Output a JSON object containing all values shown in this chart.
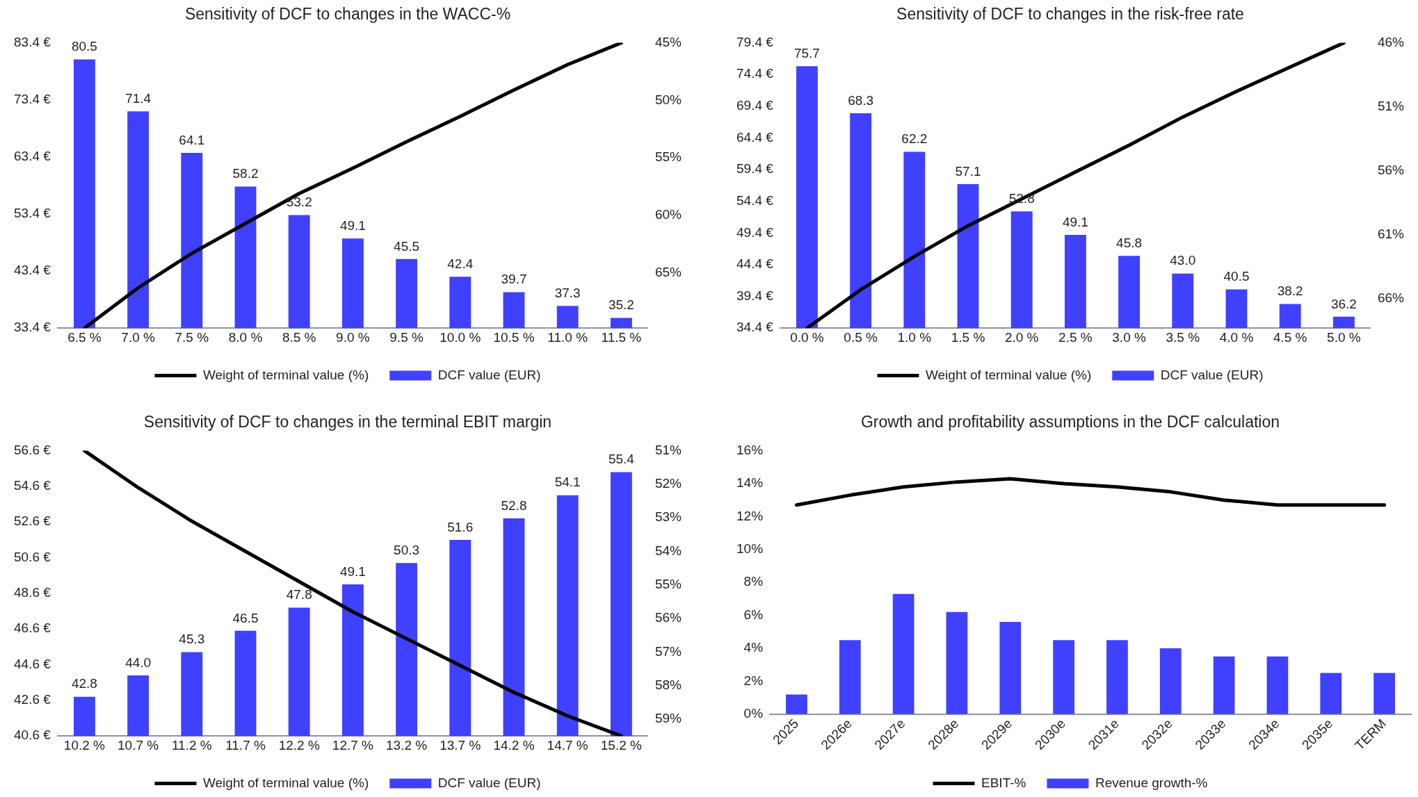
{
  "chart_data": [
    {
      "type": "bar",
      "title": "Sensitivity of DCF to changes in the WACC-%",
      "categories": [
        "6.5 %",
        "7.0 %",
        "7.5 %",
        "8.0 %",
        "8.5 %",
        "9.0 %",
        "9.5 %",
        "10.0 %",
        "10.5 %",
        "11.0 %",
        "11.5 %"
      ],
      "series": [
        {
          "name": "DCF value (EUR)",
          "color": "#4040ff",
          "values": [
            80.5,
            71.4,
            64.1,
            58.2,
            53.2,
            49.1,
            45.5,
            42.4,
            39.7,
            37.3,
            35.2
          ],
          "value_labels": [
            "80.5",
            "71.4",
            "64.1",
            "58.2",
            "53.2",
            "49.1",
            "45.5",
            "42.4",
            "39.7",
            "37.3",
            "35.2"
          ]
        },
        {
          "type": "line",
          "axis": "y2",
          "name": "Weight of terminal value (%)",
          "color": "#000000",
          "values": [
            69.8,
            66.3,
            63.3,
            60.7,
            58.1,
            55.9,
            53.6,
            51.4,
            49.1,
            46.9,
            45.0
          ]
        }
      ],
      "ylim": [
        33.4,
        83.4
      ],
      "yticks": [
        {
          "value": 33.4,
          "label": "33.4 €"
        },
        {
          "value": 43.4,
          "label": "43.4 €"
        },
        {
          "value": 53.4,
          "label": "53.4 €"
        },
        {
          "value": 63.4,
          "label": "63.4 €"
        },
        {
          "value": 73.4,
          "label": "73.4 €"
        },
        {
          "value": 83.4,
          "label": "83.4 €"
        }
      ],
      "y2lim": [
        69.8,
        45
      ],
      "y2ticks": [
        {
          "value": 45,
          "label": "45%"
        },
        {
          "value": 50,
          "label": "50%"
        },
        {
          "value": 55,
          "label": "55%"
        },
        {
          "value": 60,
          "label": "60%"
        },
        {
          "value": 65,
          "label": "65%"
        }
      ],
      "grid": false,
      "legend": "bottom",
      "marker": "none",
      "line_style": "solid"
    },
    {
      "type": "bar",
      "title": "Sensitivity of DCF to changes in the risk-free rate",
      "categories": [
        "0.0 %",
        "0.5 %",
        "1.0 %",
        "1.5 %",
        "2.0 %",
        "2.5 %",
        "3.0 %",
        "3.5 %",
        "4.0 %",
        "4.5 %",
        "5.0 %"
      ],
      "series": [
        {
          "name": "DCF value (EUR)",
          "color": "#4040ff",
          "values": [
            75.7,
            68.3,
            62.2,
            57.1,
            52.8,
            49.1,
            45.8,
            43.0,
            40.5,
            38.2,
            36.2
          ],
          "value_labels": [
            "75.7",
            "68.3",
            "62.2",
            "57.1",
            "52.8",
            "49.1",
            "45.8",
            "43.0",
            "40.5",
            "38.2",
            "36.2"
          ]
        },
        {
          "type": "line",
          "axis": "y2",
          "name": "Weight of terminal value (%)",
          "color": "#000000",
          "values": [
            68.3,
            65.3,
            62.7,
            60.3,
            58.2,
            56.1,
            54.0,
            51.8,
            49.8,
            47.9,
            46.0
          ]
        }
      ],
      "ylim": [
        34.4,
        79.4
      ],
      "yticks": [
        {
          "value": 34.4,
          "label": "34.4 €"
        },
        {
          "value": 39.4,
          "label": "39.4 €"
        },
        {
          "value": 44.4,
          "label": "44.4 €"
        },
        {
          "value": 49.4,
          "label": "49.4 €"
        },
        {
          "value": 54.4,
          "label": "54.4 €"
        },
        {
          "value": 59.4,
          "label": "59.4 €"
        },
        {
          "value": 64.4,
          "label": "64.4 €"
        },
        {
          "value": 69.4,
          "label": "69.4 €"
        },
        {
          "value": 74.4,
          "label": "74.4 €"
        },
        {
          "value": 79.4,
          "label": "79.4 €"
        }
      ],
      "y2lim": [
        68.3,
        46
      ],
      "y2ticks": [
        {
          "value": 46,
          "label": "46%"
        },
        {
          "value": 51,
          "label": "51%"
        },
        {
          "value": 56,
          "label": "56%"
        },
        {
          "value": 61,
          "label": "61%"
        },
        {
          "value": 66,
          "label": "66%"
        }
      ],
      "grid": false,
      "legend": "bottom",
      "marker": "none",
      "line_style": "solid"
    },
    {
      "type": "bar",
      "title": "Sensitivity of DCF to changes in the terminal EBIT margin",
      "categories": [
        "10.2 %",
        "10.7 %",
        "11.2 %",
        "11.7 %",
        "12.2 %",
        "12.7 %",
        "13.2 %",
        "13.7 %",
        "14.2 %",
        "14.7 %",
        "15.2 %"
      ],
      "series": [
        {
          "name": "DCF value (EUR)",
          "color": "#4040ff",
          "values": [
            42.8,
            44.0,
            45.3,
            46.5,
            47.8,
            49.1,
            50.3,
            51.6,
            52.8,
            54.1,
            55.4
          ],
          "value_labels": [
            "42.8",
            "44.0",
            "45.3",
            "46.5",
            "47.8",
            "49.1",
            "50.3",
            "51.6",
            "52.8",
            "54.1",
            "55.4"
          ]
        },
        {
          "type": "line",
          "axis": "y2",
          "name": "Weight of terminal value (%)",
          "color": "#000000",
          "values": [
            51.0,
            52.1,
            53.1,
            54.0,
            54.9,
            55.8,
            56.6,
            57.4,
            58.2,
            58.9,
            59.5
          ]
        }
      ],
      "ylim": [
        40.6,
        56.6
      ],
      "yticks": [
        {
          "value": 40.6,
          "label": "40.6 €"
        },
        {
          "value": 42.6,
          "label": "42.6 €"
        },
        {
          "value": 44.6,
          "label": "44.6 €"
        },
        {
          "value": 46.6,
          "label": "46.6 €"
        },
        {
          "value": 48.6,
          "label": "48.6 €"
        },
        {
          "value": 50.6,
          "label": "50.6 €"
        },
        {
          "value": 52.6,
          "label": "52.6 €"
        },
        {
          "value": 54.6,
          "label": "54.6 €"
        },
        {
          "value": 56.6,
          "label": "56.6 €"
        }
      ],
      "y2lim": [
        59.5,
        51
      ],
      "y2ticks": [
        {
          "value": 51,
          "label": "51%"
        },
        {
          "value": 52,
          "label": "52%"
        },
        {
          "value": 53,
          "label": "53%"
        },
        {
          "value": 54,
          "label": "54%"
        },
        {
          "value": 55,
          "label": "55%"
        },
        {
          "value": 56,
          "label": "56%"
        },
        {
          "value": 57,
          "label": "57%"
        },
        {
          "value": 58,
          "label": "58%"
        },
        {
          "value": 59,
          "label": "59%"
        }
      ],
      "grid": false,
      "legend": "bottom",
      "marker": "none",
      "line_style": "solid"
    },
    {
      "type": "bar",
      "title": "Growth and profitability assumptions in the DCF calculation",
      "categories": [
        "2025",
        "2026e",
        "2027e",
        "2028e",
        "2029e",
        "2030e",
        "2031e",
        "2032e",
        "2033e",
        "2034e",
        "2035e",
        "TERM"
      ],
      "series": [
        {
          "name": "Revenue growth-%",
          "color": "#4040ff",
          "values": [
            1.2,
            4.5,
            7.3,
            6.2,
            5.6,
            4.5,
            4.5,
            4.0,
            3.5,
            3.5,
            2.5,
            2.5
          ]
        },
        {
          "type": "line",
          "name": "EBIT-%",
          "color": "#000000",
          "values": [
            12.7,
            13.3,
            13.8,
            14.1,
            14.3,
            14.0,
            13.8,
            13.5,
            13.0,
            12.7,
            12.7,
            12.7
          ]
        }
      ],
      "ylim": [
        0,
        16
      ],
      "yticks": [
        {
          "value": 0,
          "label": "0%"
        },
        {
          "value": 2,
          "label": "2%"
        },
        {
          "value": 4,
          "label": "4%"
        },
        {
          "value": 6,
          "label": "6%"
        },
        {
          "value": 8,
          "label": "8%"
        },
        {
          "value": 10,
          "label": "10%"
        },
        {
          "value": 12,
          "label": "12%"
        },
        {
          "value": 14,
          "label": "14%"
        },
        {
          "value": 16,
          "label": "16%"
        }
      ],
      "grid": false,
      "legend": "bottom",
      "marker": "none",
      "line_style": "solid"
    }
  ]
}
